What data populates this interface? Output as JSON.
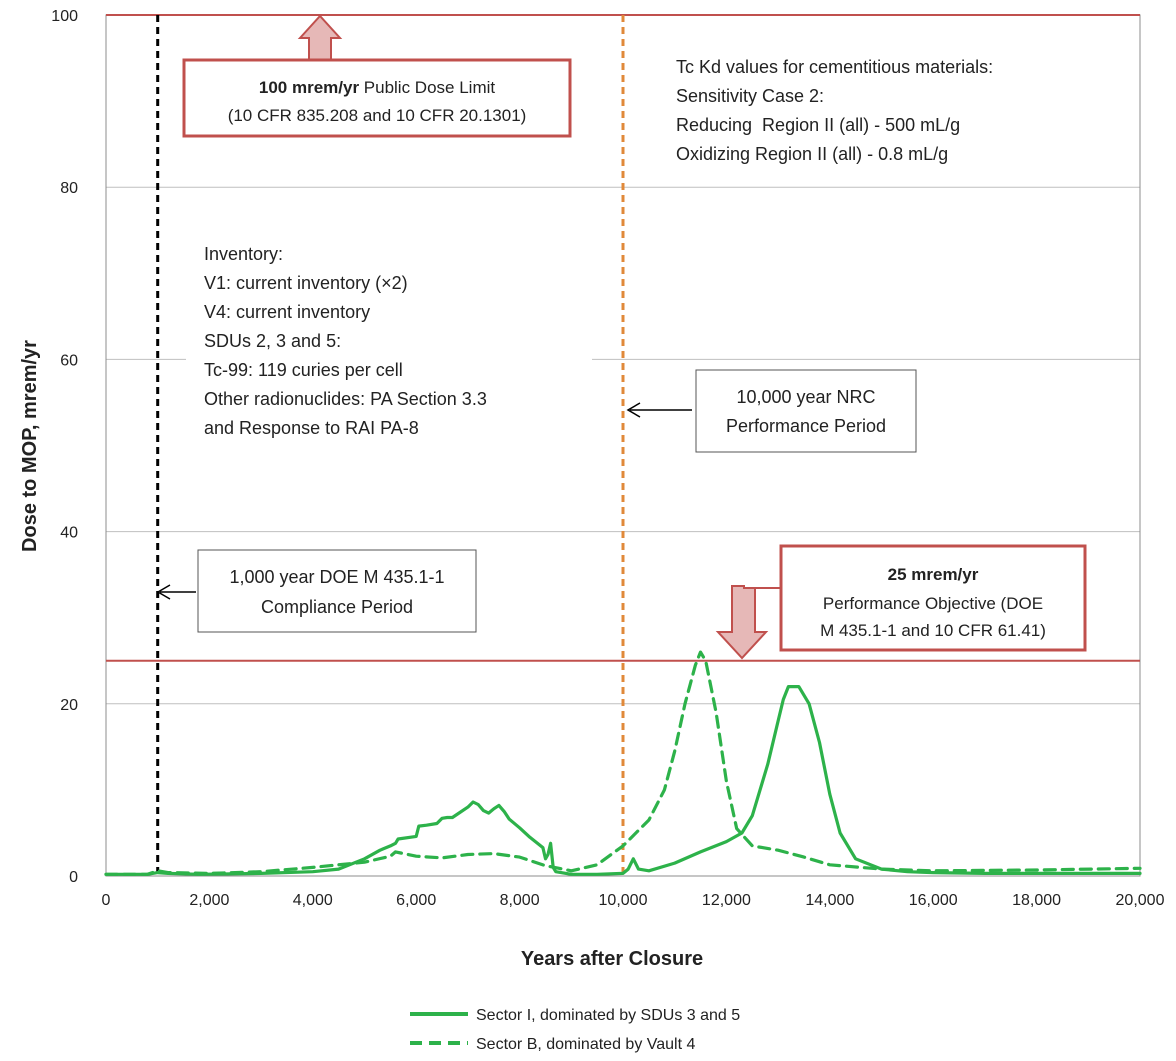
{
  "chart_data": {
    "type": "line",
    "xlabel": "Years after Closure",
    "ylabel": "Dose to MOP, mrem/yr",
    "xlim": [
      0,
      20000
    ],
    "ylim": [
      0,
      100
    ],
    "x_ticks": [
      "0",
      "2,000",
      "4,000",
      "6,000",
      "8,000",
      "10,000",
      "12,000",
      "14,000",
      "16,000",
      "18,000",
      "20,000"
    ],
    "x_tick_values": [
      0,
      2000,
      4000,
      6000,
      8000,
      10000,
      12000,
      14000,
      16000,
      18000,
      20000
    ],
    "y_ticks": [
      "0",
      "20",
      "40",
      "60",
      "80",
      "100"
    ],
    "y_tick_values": [
      0,
      20,
      40,
      60,
      80,
      100
    ],
    "grid": "horizontal",
    "legend_position": "bottom",
    "colors": {
      "series": "#2db24a",
      "limit": "#c0504d",
      "doe_line": "#000000",
      "nrc_line": "#e0893a",
      "grid": "#bfbfbf"
    },
    "series": [
      {
        "name": "Sector I, dominated by SDUs 3 and 5",
        "style": "solid",
        "x": [
          0,
          800,
          1000,
          1200,
          1800,
          3000,
          4000,
          4500,
          5000,
          5300,
          5500,
          5600,
          5650,
          6000,
          6050,
          6200,
          6400,
          6500,
          6600,
          6700,
          6800,
          7000,
          7100,
          7200,
          7300,
          7400,
          7500,
          7600,
          7700,
          7800,
          8000,
          8200,
          8450,
          8500,
          8550,
          8600,
          8650,
          8700,
          9000,
          9500,
          10000,
          10100,
          10200,
          10300,
          10500,
          11000,
          11500,
          12000,
          12300,
          12500,
          12800,
          13000,
          13100,
          13200,
          13400,
          13600,
          13800,
          14000,
          14200,
          14500,
          15000,
          15500,
          16000,
          17000,
          18000,
          20000
        ],
        "y": [
          0.2,
          0.2,
          0.4,
          0.3,
          0.2,
          0.3,
          0.5,
          0.8,
          2.0,
          3.0,
          3.5,
          3.8,
          4.3,
          4.6,
          5.8,
          5.9,
          6.1,
          6.7,
          6.8,
          6.8,
          7.2,
          8.0,
          8.6,
          8.3,
          7.6,
          7.3,
          7.8,
          8.2,
          7.5,
          6.6,
          5.6,
          4.5,
          3.3,
          2.0,
          2.5,
          3.8,
          1.0,
          0.5,
          0.2,
          0.2,
          0.3,
          0.8,
          2.0,
          0.8,
          0.6,
          1.5,
          2.8,
          4.0,
          5.0,
          7.0,
          13.0,
          18.0,
          20.5,
          22.0,
          22.0,
          20.0,
          15.5,
          9.5,
          5.0,
          2.0,
          0.8,
          0.5,
          0.4,
          0.3,
          0.3,
          0.3
        ]
      },
      {
        "name": "Sector B, dominated by Vault 4",
        "style": "dashed",
        "x": [
          0,
          800,
          1000,
          1200,
          2000,
          3000,
          4000,
          4500,
          5000,
          5500,
          5600,
          6000,
          6500,
          7000,
          7500,
          8000,
          8500,
          9000,
          9500,
          10000,
          10500,
          10800,
          11000,
          11200,
          11400,
          11500,
          11600,
          11800,
          12000,
          12200,
          12500,
          13000,
          13500,
          14000,
          15000,
          16000,
          18000,
          20000
        ],
        "y": [
          0.2,
          0.2,
          0.6,
          0.4,
          0.3,
          0.5,
          1.0,
          1.3,
          1.6,
          2.3,
          2.8,
          2.3,
          2.1,
          2.5,
          2.6,
          2.2,
          1.2,
          0.6,
          1.3,
          3.5,
          6.5,
          10.0,
          14.5,
          20.0,
          24.5,
          26.0,
          25.0,
          19.0,
          11.0,
          5.5,
          3.5,
          3.0,
          2.2,
          1.3,
          0.8,
          0.6,
          0.7,
          0.9
        ]
      }
    ],
    "reference_lines": {
      "public_dose_limit_y": 100,
      "performance_objective_y": 25,
      "doe_compliance_x": 1000,
      "nrc_performance_x": 10000
    },
    "annotations": {
      "public_limit": {
        "bold": "100 mrem/yr",
        "rest": " Public Dose Limit",
        "line2": "(10 CFR 835.208 and 10 CFR 20.1301)"
      },
      "perf_objective": {
        "bold": "25 mrem/yr",
        "line2": "Performance Objective (DOE",
        "line3": "M 435.1-1 and 10 CFR 61.41)"
      },
      "doe_period": {
        "line1": "1,000 year DOE M 435.1-1",
        "line2": "Compliance Period"
      },
      "nrc_period": {
        "line1": "10,000 year NRC",
        "line2": "Performance Period"
      },
      "tc_kd": [
        "Tc Kd values for cementitious materials:",
        "Sensitivity Case 2:",
        "Reducing  Region II (all) - 500 mL/g",
        "Oxidizing Region II (all) - 0.8 mL/g"
      ],
      "inventory": [
        "Inventory:",
        "V1: current inventory (×2)",
        "V4: current inventory",
        "SDUs 2, 3 and 5:",
        "Tc-99: 119 curies per cell",
        "Other radionuclides: PA Section 3.3",
        "and Response to RAI PA-8"
      ]
    }
  }
}
